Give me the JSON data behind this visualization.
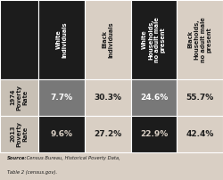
{
  "col_headers": [
    "White\nIndividuals",
    "Black\nIndividuals",
    "White\nHouseholds,\nno adult male\npresent",
    "Black\nHouseholds,\nno adult male\npresent"
  ],
  "row_headers": [
    "1974\nPoverty\nRate",
    "2013\nPoverty\nRate"
  ],
  "values": [
    [
      "7.7%",
      "30.3%",
      "24.6%",
      "55.7%"
    ],
    [
      "9.6%",
      "27.2%",
      "22.9%",
      "42.4%"
    ]
  ],
  "source_bold": "Source:",
  "source_rest": " Census Bureau, Historical Poverty Data,",
  "source_line2": "Table 2 (census.gov).",
  "col_header_bg": [
    "#1c1c1c",
    "#d9cfc4",
    "#1c1c1c",
    "#d9cfc4"
  ],
  "col_header_fg": [
    "#ffffff",
    "#1c1c1c",
    "#ffffff",
    "#1c1c1c"
  ],
  "row_header_bg": [
    "#c8c0b5",
    "#c8c0b5"
  ],
  "row_header_fg": [
    "#1c1c1c",
    "#1c1c1c"
  ],
  "cell_bg": [
    [
      "#787878",
      "#d9cfc4",
      "#787878",
      "#d9cfc4"
    ],
    [
      "#1c1c1c",
      "#d9cfc4",
      "#1c1c1c",
      "#d9cfc4"
    ]
  ],
  "cell_fg": [
    [
      "#ffffff",
      "#1c1c1c",
      "#ffffff",
      "#1c1c1c"
    ],
    [
      "#d9cfc4",
      "#1c1c1c",
      "#d9cfc4",
      "#1c1c1c"
    ]
  ],
  "corner_bg": "#1c1c1c",
  "outer_bg": "#d9cfc4",
  "border_color": "#ffffff",
  "figsize": [
    2.5,
    2.02
  ],
  "dpi": 100
}
